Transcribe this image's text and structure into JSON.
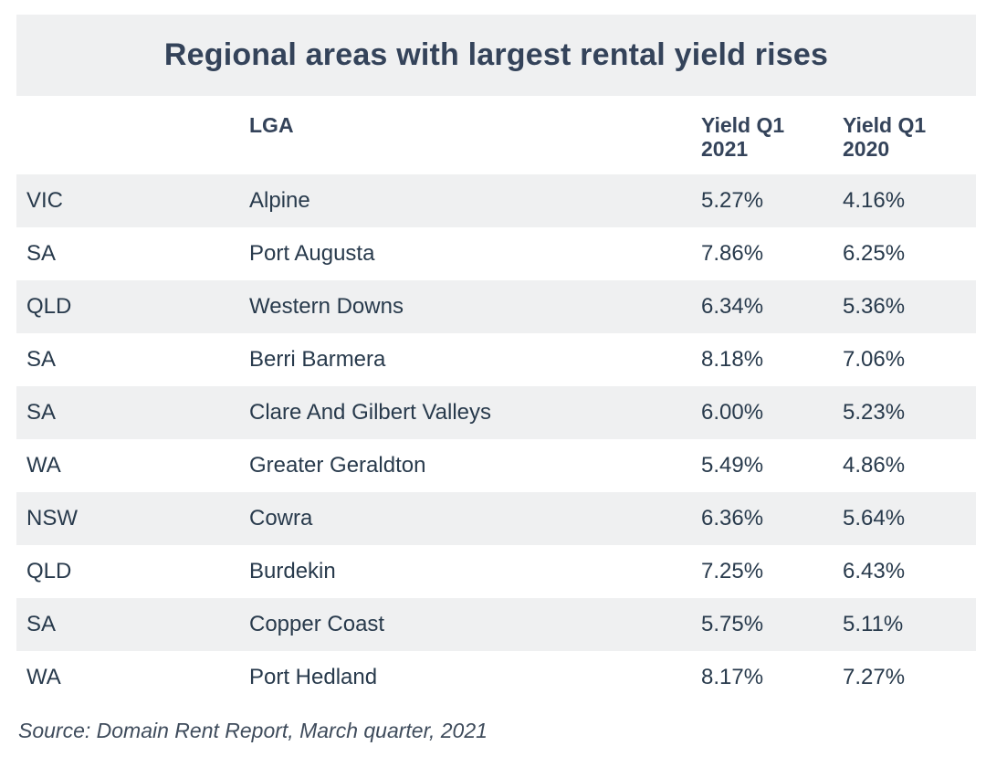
{
  "chart_data": {
    "type": "table",
    "title": "Regional areas with largest rental yield rises",
    "columns": [
      "",
      "LGA",
      "Yield Q1 2021",
      "Yield Q1 2020"
    ],
    "rows": [
      {
        "state": "VIC",
        "lga": "Alpine",
        "yield_2021": "5.27%",
        "yield_2020": "4.16%"
      },
      {
        "state": "SA",
        "lga": "Port Augusta",
        "yield_2021": "7.86%",
        "yield_2020": "6.25%"
      },
      {
        "state": "QLD",
        "lga": "Western Downs",
        "yield_2021": "6.34%",
        "yield_2020": "5.36%"
      },
      {
        "state": "SA",
        "lga": "Berri Barmera",
        "yield_2021": "8.18%",
        "yield_2020": "7.06%"
      },
      {
        "state": "SA",
        "lga": "Clare And Gilbert Valleys",
        "yield_2021": "6.00%",
        "yield_2020": "5.23%"
      },
      {
        "state": "WA",
        "lga": "Greater Geraldton",
        "yield_2021": "5.49%",
        "yield_2020": "4.86%"
      },
      {
        "state": "NSW",
        "lga": "Cowra",
        "yield_2021": "6.36%",
        "yield_2020": "5.64%"
      },
      {
        "state": "QLD",
        "lga": "Burdekin",
        "yield_2021": "7.25%",
        "yield_2020": "6.43%"
      },
      {
        "state": "SA",
        "lga": "Copper Coast",
        "yield_2021": "5.75%",
        "yield_2020": "5.11%"
      },
      {
        "state": "WA",
        "lga": "Port Hedland",
        "yield_2021": "8.17%",
        "yield_2020": "7.27%"
      }
    ],
    "source": "Source: Domain Rent Report, March quarter, 2021"
  },
  "header": {
    "col_state": "",
    "col_lga": "LGA",
    "col_y21_line1": "Yield Q1",
    "col_y21_line2": "2021",
    "col_y20_line1": "Yield Q1",
    "col_y20_line2": "2020"
  },
  "colors": {
    "shade": "#eff0f1",
    "text": "#283a4c",
    "title": "#34435a"
  }
}
